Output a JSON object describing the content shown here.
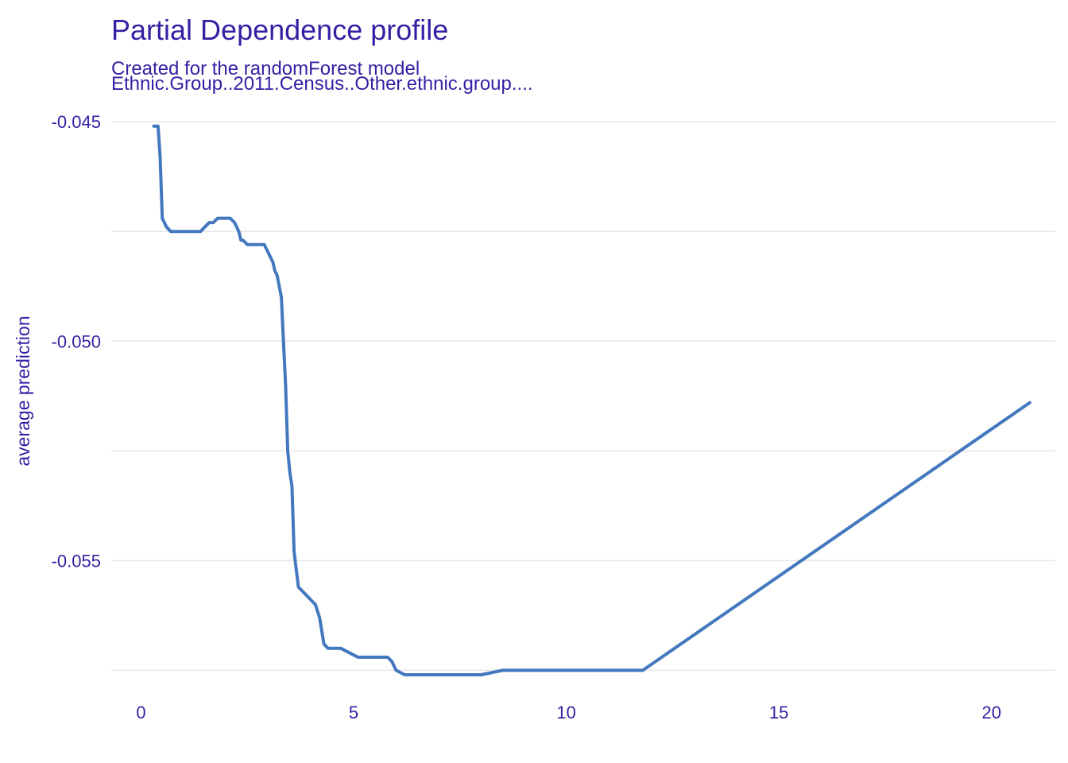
{
  "chart_data": {
    "type": "line",
    "title": "Partial Dependence profile",
    "subtitle": "Created for the randomForest model",
    "variable_label": "Ethnic.Group..2011.Census..Other.ethnic.group....",
    "xlabel": "",
    "ylabel": "average prediction",
    "xlim": [
      -0.7,
      21.5
    ],
    "ylim": [
      -0.0578,
      -0.0444
    ],
    "x_ticks": [
      0,
      5,
      10,
      15,
      20
    ],
    "x_tick_labels": [
      "0",
      "5",
      "10",
      "15",
      "20"
    ],
    "y_ticks": [
      -0.045,
      -0.0475,
      -0.05,
      -0.0525,
      -0.055,
      -0.0575
    ],
    "y_tick_labels": [
      "-0.045",
      "",
      "-0.050",
      "",
      "-0.055",
      ""
    ],
    "grid": true,
    "legend": "none",
    "colors": {
      "line": "#4378bf",
      "text": "#371ea3",
      "grid": "#e6e6ea"
    },
    "series": [
      {
        "x": [
          0.3,
          0.4,
          0.45,
          0.5,
          0.6,
          0.7,
          0.8,
          1.0,
          1.2,
          1.4,
          1.5,
          1.6,
          1.7,
          1.8,
          1.9,
          2.0,
          2.1,
          2.2,
          2.3,
          2.35,
          2.4,
          2.5,
          2.6,
          2.8,
          2.9,
          3.0,
          3.1,
          3.15,
          3.2,
          3.3,
          3.35,
          3.4,
          3.45,
          3.5,
          3.55,
          3.6,
          3.7,
          3.8,
          3.9,
          4.0,
          4.1,
          4.2,
          4.3,
          4.4,
          4.5,
          4.7,
          4.9,
          5.1,
          5.3,
          5.5,
          5.8,
          5.9,
          6.0,
          6.2,
          6.4,
          6.8,
          7.2,
          7.6,
          8.0,
          8.5,
          9.0,
          10.0,
          11.0,
          11.8,
          20.9
        ],
        "y": [
          -0.0451,
          -0.0451,
          -0.0458,
          -0.0472,
          -0.0474,
          -0.0475,
          -0.0475,
          -0.0475,
          -0.0475,
          -0.0475,
          -0.0474,
          -0.0473,
          -0.0473,
          -0.0472,
          -0.0472,
          -0.0472,
          -0.0472,
          -0.0473,
          -0.0475,
          -0.0477,
          -0.0477,
          -0.0478,
          -0.0478,
          -0.0478,
          -0.0478,
          -0.048,
          -0.0482,
          -0.0484,
          -0.0485,
          -0.049,
          -0.05,
          -0.051,
          -0.0525,
          -0.053,
          -0.0533,
          -0.0548,
          -0.0556,
          -0.0557,
          -0.0558,
          -0.0559,
          -0.056,
          -0.0563,
          -0.0569,
          -0.057,
          -0.057,
          -0.057,
          -0.0571,
          -0.0572,
          -0.0572,
          -0.0572,
          -0.0572,
          -0.0573,
          -0.0575,
          -0.0576,
          -0.0576,
          -0.0576,
          -0.0576,
          -0.0576,
          -0.0576,
          -0.0575,
          -0.0575,
          -0.0575,
          -0.0575,
          -0.0575,
          -0.0514
        ]
      }
    ]
  }
}
